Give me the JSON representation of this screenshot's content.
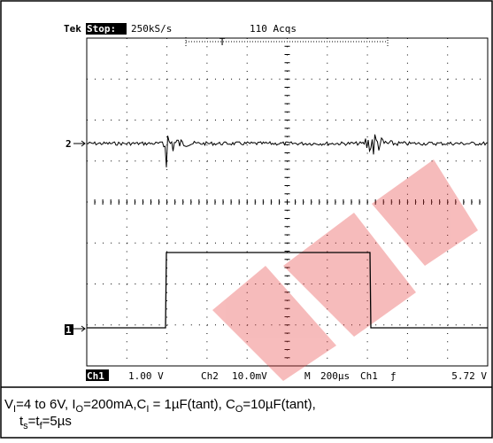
{
  "header": {
    "brand": "Tek",
    "state": "Stop:",
    "rate": "250kS/s",
    "acqs": "110 Acqs",
    "trigger_marker": "T"
  },
  "markers": {
    "ch2": "2",
    "ch1": "1"
  },
  "footer": {
    "ch1": "Ch1",
    "ch1_scale": "1.00 V",
    "ch2": "Ch2",
    "ch2_scale": "10.0mV",
    "timebase_label": "M",
    "timebase": "200µs",
    "trigger_source": "Ch1",
    "trigger_slope": "ƒ",
    "trigger_level": "5.72 V"
  },
  "caption": {
    "line1": [
      {
        "text": "V"
      },
      {
        "sub": "I"
      },
      {
        "text": "=4 to 6V, I"
      },
      {
        "sub": "O"
      },
      {
        "text": "=200mA,C"
      },
      {
        "sub": "I"
      },
      {
        "text": " = 1µF(tant), C"
      },
      {
        "sub": "O"
      },
      {
        "text": "=10µF(tant),"
      }
    ],
    "line2": [
      {
        "text": "t"
      },
      {
        "sub": "s"
      },
      {
        "text": "=t"
      },
      {
        "sub": "f"
      },
      {
        "text": "=5µs"
      }
    ]
  }
}
